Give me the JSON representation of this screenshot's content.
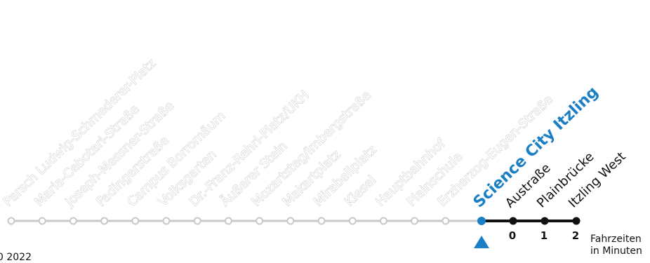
{
  "line_display": {
    "current_stop": "Science City Itzling",
    "past_stops": [
      "Parsch Ludwig-Schmederer-Platz",
      "Maria-Cebotari-Straße",
      "Joseph-Messner-Straße",
      "Fadingerstraße",
      "Campus Borromäum",
      "Volksgarten",
      "Dr.-Franz-Rehrl-Platz/UKH",
      "Äußerer Stein",
      "Mozartsteg/Imbergstraße",
      "Makartplatz",
      "Mirabellplatz",
      "Kiesel",
      "Hauptbahnhof",
      "Plainschule",
      "Erzherzog-Eugen-Straße"
    ],
    "upcoming_stops": [
      {
        "name": "Austraße",
        "minutes": "0"
      },
      {
        "name": "Plainbrücke",
        "minutes": "1"
      },
      {
        "name": "Itzling West",
        "minutes": "2"
      }
    ],
    "travel_time_caption": {
      "line1": "Fahrzeiten",
      "line2": "in Minuten"
    },
    "corner_fragment": "0 2022",
    "colors": {
      "past_line": "#c8c8c8",
      "active_line": "#111111",
      "accent": "#1a7fc4"
    },
    "icons": {
      "position_marker": "up-triangle-icon"
    }
  }
}
